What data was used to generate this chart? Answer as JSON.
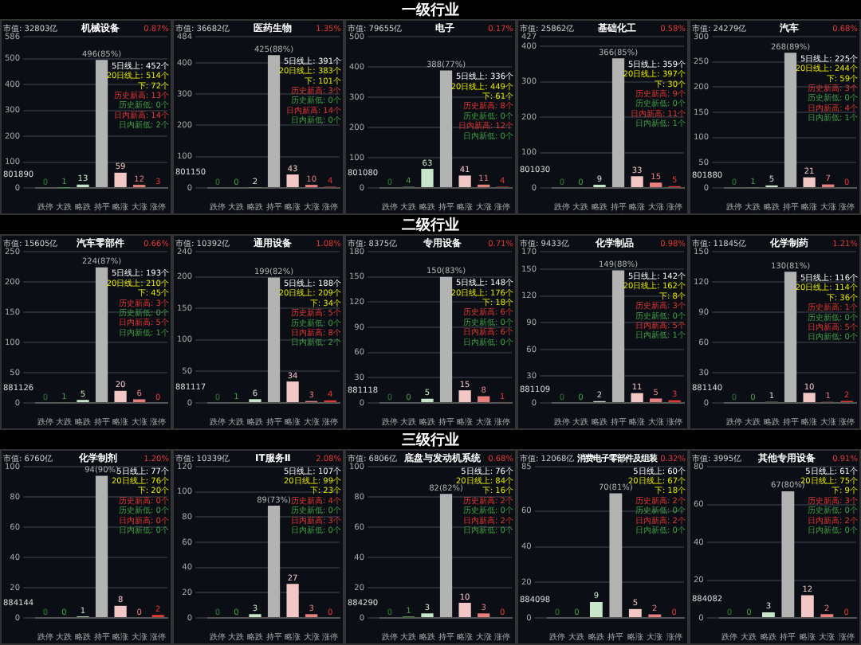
{
  "chart_data": [
    {
      "type": "other",
      "title": "一级行业"
    },
    {
      "type": "bar",
      "title": "机械设备",
      "subtitle": "市值: 32803亿",
      "categories": [
        "跌停",
        "大跌",
        "略跌",
        "持平",
        "略涨",
        "大涨",
        "涨停"
      ],
      "values": [
        0,
        1,
        13,
        496,
        59,
        12,
        3
      ],
      "value_labels": [
        "0",
        "1",
        "13",
        "496(85%)",
        "59",
        "12",
        "3"
      ],
      "colors": [
        "#2e7d32",
        "#43a047",
        "#c8e6c9",
        "#b3b3b3",
        "#f4c7c7",
        "#e88080",
        "#e53935"
      ],
      "ylim": [
        0,
        586
      ],
      "yticks": [
        0,
        100,
        200,
        300,
        400,
        500,
        586
      ],
      "grid": "y",
      "annotations": [
        "0.87%",
        "5日线上: 452个",
        "20日线上: 514个",
        "下: 72个",
        "历史新高: 13个",
        "历史新低: 0个",
        "日内新高: 14个",
        "日内新低: 2个",
        "801890"
      ]
    },
    {
      "type": "bar",
      "title": "医药生物",
      "subtitle": "市值: 36682亿",
      "categories": [
        "跌停",
        "大跌",
        "略跌",
        "持平",
        "略涨",
        "大涨",
        "涨停"
      ],
      "values": [
        0,
        0,
        2,
        425,
        43,
        10,
        4
      ],
      "value_labels": [
        "0",
        "0",
        "2",
        "425(88%)",
        "43",
        "10",
        "4"
      ],
      "colors": [
        "#2e7d32",
        "#43a047",
        "#c8e6c9",
        "#b3b3b3",
        "#f4c7c7",
        "#e88080",
        "#e53935"
      ],
      "ylim": [
        0,
        484
      ],
      "yticks": [
        0,
        100,
        200,
        300,
        400,
        484
      ],
      "grid": "y",
      "annotations": [
        "1.35%",
        "5日线上: 391个",
        "20日线上: 383个",
        "下: 101个",
        "历史新高: 3个",
        "历史新低: 0个",
        "日内新高: 14个",
        "日内新低: 0个",
        "801150"
      ]
    },
    {
      "type": "bar",
      "title": "电子",
      "subtitle": "市值: 79655亿",
      "categories": [
        "跌停",
        "大跌",
        "略跌",
        "持平",
        "略涨",
        "大涨",
        "涨停"
      ],
      "values": [
        0,
        4,
        63,
        388,
        41,
        11,
        4
      ],
      "value_labels": [
        "0",
        "4",
        "63",
        "388(77%)",
        "41",
        "11",
        "4"
      ],
      "colors": [
        "#2e7d32",
        "#43a047",
        "#c8e6c9",
        "#b3b3b3",
        "#f4c7c7",
        "#e88080",
        "#e53935"
      ],
      "ylim": [
        0,
        500
      ],
      "yticks": [
        0,
        100,
        200,
        300,
        400,
        500
      ],
      "grid": "y",
      "annotations": [
        "0.17%",
        "5日线上: 336个",
        "20日线上: 449个",
        "下: 61个",
        "历史新高: 8个",
        "历史新低: 0个",
        "日内新高: 12个",
        "日内新低: 0个",
        "801080"
      ]
    },
    {
      "type": "bar",
      "title": "基础化工",
      "subtitle": "市值: 25862亿",
      "categories": [
        "跌停",
        "大跌",
        "略跌",
        "持平",
        "略涨",
        "大涨",
        "涨停"
      ],
      "values": [
        0,
        0,
        9,
        366,
        33,
        15,
        5
      ],
      "value_labels": [
        "0",
        "0",
        "9",
        "366(85%)",
        "33",
        "15",
        "5"
      ],
      "colors": [
        "#2e7d32",
        "#43a047",
        "#c8e6c9",
        "#b3b3b3",
        "#f4c7c7",
        "#e88080",
        "#e53935"
      ],
      "ylim": [
        0,
        427
      ],
      "yticks": [
        0,
        100,
        200,
        300,
        400,
        427
      ],
      "grid": "y",
      "annotations": [
        "0.58%",
        "5日线上: 359个",
        "20日线上: 397个",
        "下: 30个",
        "历史新高: 9个",
        "历史新低: 0个",
        "日内新高: 11个",
        "日内新低: 1个",
        "801030"
      ]
    },
    {
      "type": "bar",
      "title": "汽车",
      "subtitle": "市值: 24279亿",
      "categories": [
        "跌停",
        "大跌",
        "略跌",
        "持平",
        "略涨",
        "大涨",
        "涨停"
      ],
      "values": [
        0,
        1,
        5,
        268,
        21,
        7,
        0
      ],
      "value_labels": [
        "0",
        "1",
        "5",
        "268(89%)",
        "21",
        "7",
        "0"
      ],
      "colors": [
        "#2e7d32",
        "#43a047",
        "#c8e6c9",
        "#b3b3b3",
        "#f4c7c7",
        "#e88080",
        "#e53935"
      ],
      "ylim": [
        0,
        300
      ],
      "yticks": [
        0,
        50,
        100,
        150,
        200,
        250,
        300
      ],
      "grid": "y",
      "annotations": [
        "0.68%",
        "5日线上: 225个",
        "20日线上: 244个",
        "下: 59个",
        "历史新高: 3个",
        "历史新低: 0个",
        "日内新高: 4个",
        "日内新低: 1个",
        "801880"
      ]
    },
    {
      "type": "other",
      "title": "二级行业"
    },
    {
      "type": "bar",
      "title": "汽车零部件",
      "subtitle": "市值: 15605亿",
      "categories": [
        "跌停",
        "大跌",
        "略跌",
        "持平",
        "略涨",
        "大涨",
        "涨停"
      ],
      "values": [
        0,
        1,
        5,
        224,
        20,
        6,
        0
      ],
      "value_labels": [
        "0",
        "1",
        "5",
        "224(87%)",
        "20",
        "6",
        "0"
      ],
      "colors": [
        "#2e7d32",
        "#43a047",
        "#c8e6c9",
        "#b3b3b3",
        "#f4c7c7",
        "#e88080",
        "#e53935"
      ],
      "ylim": [
        0,
        250
      ],
      "yticks": [
        0,
        50,
        100,
        150,
        200,
        250
      ],
      "grid": "y",
      "annotations": [
        "0.66%",
        "5日线上: 193个",
        "20日线上: 210个",
        "下: 45个",
        "历史新高: 3个",
        "历史新低: 0个",
        "日内新高: 5个",
        "日内新低: 1个",
        "881126"
      ]
    },
    {
      "type": "bar",
      "title": "通用设备",
      "subtitle": "市值: 10392亿",
      "categories": [
        "跌停",
        "大跌",
        "略跌",
        "持平",
        "略涨",
        "大涨",
        "涨停"
      ],
      "values": [
        0,
        1,
        6,
        199,
        34,
        3,
        4
      ],
      "value_labels": [
        "0",
        "1",
        "6",
        "199(82%)",
        "34",
        "3",
        "4"
      ],
      "colors": [
        "#2e7d32",
        "#43a047",
        "#c8e6c9",
        "#b3b3b3",
        "#f4c7c7",
        "#e88080",
        "#e53935"
      ],
      "ylim": [
        0,
        240
      ],
      "yticks": [
        0,
        50,
        100,
        150,
        200,
        240
      ],
      "grid": "y",
      "annotations": [
        "1.08%",
        "5日线上: 188个",
        "20日线上: 209个",
        "下: 34个",
        "历史新高: 5个",
        "历史新低: 0个",
        "日内新高: 8个",
        "日内新低: 2个",
        "881117"
      ]
    },
    {
      "type": "bar",
      "title": "专用设备",
      "subtitle": "市值: 8375亿",
      "categories": [
        "跌停",
        "大跌",
        "略跌",
        "持平",
        "略涨",
        "大涨",
        "涨停"
      ],
      "values": [
        0,
        0,
        5,
        150,
        15,
        8,
        1
      ],
      "value_labels": [
        "0",
        "0",
        "5",
        "150(83%)",
        "15",
        "8",
        "1"
      ],
      "colors": [
        "#2e7d32",
        "#43a047",
        "#c8e6c9",
        "#b3b3b3",
        "#f4c7c7",
        "#e88080",
        "#e53935"
      ],
      "ylim": [
        0,
        180
      ],
      "yticks": [
        0,
        30,
        60,
        90,
        120,
        150,
        180
      ],
      "grid": "y",
      "annotations": [
        "0.71%",
        "5日线上: 148个",
        "20日线上: 176个",
        "下: 18个",
        "历史新高: 6个",
        "历史新低: 0个",
        "日内新高: 6个",
        "日内新低: 0个",
        "881118"
      ]
    },
    {
      "type": "bar",
      "title": "化学制品",
      "subtitle": "市值: 9433亿",
      "categories": [
        "跌停",
        "大跌",
        "略跌",
        "持平",
        "略涨",
        "大涨",
        "涨停"
      ],
      "values": [
        0,
        0,
        2,
        149,
        11,
        5,
        3
      ],
      "value_labels": [
        "0",
        "0",
        "2",
        "149(88%)",
        "11",
        "5",
        "3"
      ],
      "colors": [
        "#2e7d32",
        "#43a047",
        "#c8e6c9",
        "#b3b3b3",
        "#f4c7c7",
        "#e88080",
        "#e53935"
      ],
      "ylim": [
        0,
        170
      ],
      "yticks": [
        0,
        30,
        60,
        90,
        120,
        150,
        170
      ],
      "grid": "y",
      "annotations": [
        "0.98%",
        "5日线上: 142个",
        "20日线上: 162个",
        "下: 8个",
        "历史新高: 3个",
        "历史新低: 0个",
        "日内新高: 5个",
        "日内新低: 1个",
        "881109"
      ]
    },
    {
      "type": "bar",
      "title": "化学制药",
      "subtitle": "市值: 11845亿",
      "categories": [
        "跌停",
        "大跌",
        "略跌",
        "持平",
        "略涨",
        "大涨",
        "涨停"
      ],
      "values": [
        0,
        0,
        1,
        130,
        10,
        1,
        2
      ],
      "value_labels": [
        "0",
        "0",
        "1",
        "130(81%)",
        "10",
        "1",
        "2"
      ],
      "colors": [
        "#2e7d32",
        "#43a047",
        "#c8e6c9",
        "#b3b3b3",
        "#f4c7c7",
        "#e88080",
        "#e53935"
      ],
      "ylim": [
        0,
        150
      ],
      "yticks": [
        0,
        30,
        60,
        90,
        120,
        150
      ],
      "grid": "y",
      "annotations": [
        "1.21%",
        "5日线上: 116个",
        "20日线上: 114个",
        "下: 36个",
        "历史新高: 1个",
        "历史新低: 0个",
        "日内新高: 5个",
        "日内新低: 0个",
        "881140"
      ]
    },
    {
      "type": "other",
      "title": "三级行业"
    },
    {
      "type": "bar",
      "title": "化学制剂",
      "subtitle": "市值: 6760亿",
      "categories": [
        "跌停",
        "大跌",
        "略跌",
        "持平",
        "略涨",
        "大涨",
        "涨停"
      ],
      "values": [
        0,
        0,
        1,
        94,
        8,
        0,
        2
      ],
      "value_labels": [
        "0",
        "0",
        "1",
        "94(90%)",
        "8",
        "0",
        "2"
      ],
      "colors": [
        "#2e7d32",
        "#43a047",
        "#c8e6c9",
        "#b3b3b3",
        "#f4c7c7",
        "#e88080",
        "#e53935"
      ],
      "ylim": [
        0,
        100
      ],
      "yticks": [
        0,
        20,
        40,
        60,
        80,
        100
      ],
      "grid": "y",
      "annotations": [
        "1.20%",
        "5日线上: 77个",
        "20日线上: 76个",
        "下: 20个",
        "历史新高: 0个",
        "历史新低: 0个",
        "日内新高: 0个",
        "日内新低: 0个",
        "884144"
      ]
    },
    {
      "type": "bar",
      "title": "IT服务Ⅱ",
      "subtitle": "市值: 10339亿",
      "categories": [
        "跌停",
        "大跌",
        "略跌",
        "持平",
        "略涨",
        "大涨",
        "涨停"
      ],
      "values": [
        0,
        0,
        3,
        89,
        27,
        3,
        0
      ],
      "value_labels": [
        "0",
        "0",
        "3",
        "89(73%)",
        "27",
        "3",
        "0"
      ],
      "colors": [
        "#2e7d32",
        "#43a047",
        "#c8e6c9",
        "#b3b3b3",
        "#f4c7c7",
        "#e88080",
        "#e53935"
      ],
      "ylim": [
        0,
        120
      ],
      "yticks": [
        0,
        20,
        40,
        60,
        80,
        100,
        120
      ],
      "grid": "y",
      "annotations": [
        "2.08%",
        "5日线上: 107个",
        "20日线上: 99个",
        "下: 23个",
        "历史新高: 4个",
        "历史新低: 0个",
        "日内新高: 3个",
        "日内新低: 0个"
      ]
    },
    {
      "type": "bar",
      "title": "底盘与发动机系统",
      "subtitle": "市值: 6806亿",
      "categories": [
        "跌停",
        "大跌",
        "略跌",
        "持平",
        "略涨",
        "大涨",
        "涨停"
      ],
      "values": [
        0,
        1,
        3,
        82,
        10,
        3,
        0
      ],
      "value_labels": [
        "0",
        "1",
        "3",
        "82(82%)",
        "10",
        "3",
        "0"
      ],
      "colors": [
        "#2e7d32",
        "#43a047",
        "#c8e6c9",
        "#b3b3b3",
        "#f4c7c7",
        "#e88080",
        "#e53935"
      ],
      "ylim": [
        0,
        100
      ],
      "yticks": [
        0,
        20,
        40,
        60,
        80,
        100
      ],
      "grid": "y",
      "annotations": [
        "0.68%",
        "5日线上: 76个",
        "20日线上: 84个",
        "下: 16个",
        "历史新高: 2个",
        "历史新低: 0个",
        "日内新高: 2个",
        "日内新低: 0个",
        "884290"
      ]
    },
    {
      "type": "bar",
      "title": "消费电子零部件及组装",
      "subtitle": "市值: 12068亿",
      "categories": [
        "跌停",
        "大跌",
        "略跌",
        "持平",
        "略涨",
        "大涨",
        "涨停"
      ],
      "values": [
        0,
        0,
        9,
        70,
        5,
        2,
        0
      ],
      "value_labels": [
        "0",
        "0",
        "9",
        "70(81%)",
        "5",
        "2",
        "0"
      ],
      "colors": [
        "#2e7d32",
        "#43a047",
        "#c8e6c9",
        "#b3b3b3",
        "#f4c7c7",
        "#e88080",
        "#e53935"
      ],
      "ylim": [
        0,
        85
      ],
      "yticks": [
        0,
        20,
        40,
        60,
        85
      ],
      "grid": "y",
      "annotations": [
        "0.32%",
        "5日线上: 60个",
        "20日线上: 67个",
        "下: 18个",
        "历史新高: 2个",
        "历史新低: 0个",
        "日内新高: 2个",
        "日内新低: 0个",
        "884098"
      ]
    },
    {
      "type": "bar",
      "title": "其他专用设备",
      "subtitle": "市值: 3995亿",
      "categories": [
        "跌停",
        "大跌",
        "略跌",
        "持平",
        "略涨",
        "大涨",
        "涨停"
      ],
      "values": [
        0,
        0,
        3,
        67,
        12,
        2,
        0
      ],
      "value_labels": [
        "0",
        "0",
        "3",
        "67(80%)",
        "12",
        "2",
        "0"
      ],
      "colors": [
        "#2e7d32",
        "#43a047",
        "#c8e6c9",
        "#b3b3b3",
        "#f4c7c7",
        "#e88080",
        "#e53935"
      ],
      "ylim": [
        0,
        80
      ],
      "yticks": [
        0,
        20,
        40,
        60,
        80
      ],
      "grid": "y",
      "annotations": [
        "0.91%",
        "5日线上: 61个",
        "20日线上: 75个",
        "下: 9个",
        "历史新高: 3个",
        "历史新低: 0个",
        "日内新高: 2个",
        "日内新低: 0个",
        "884082"
      ]
    }
  ]
}
